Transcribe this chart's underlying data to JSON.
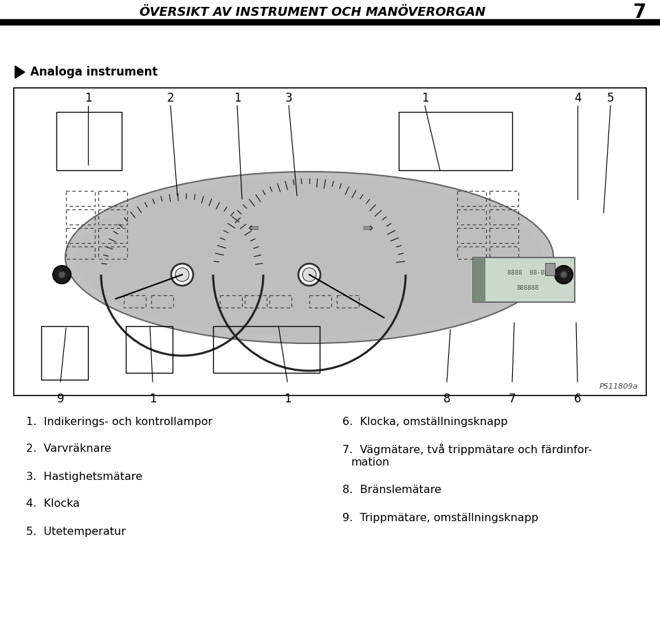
{
  "title": "ÖVERSIKT AV INSTRUMENT OCH MANÖVERORGAN",
  "page_number": "7",
  "section_title": "Analoga instrument",
  "background_color": "#ffffff",
  "image_ref": "PS11809a",
  "items_left": [
    "1.  Indikerings- och kontrollampor",
    "2.  Varvräknare",
    "3.  Hastighetsmätare",
    "4.  Klocka",
    "5.  Utetemperatur"
  ],
  "items_right_6": "6.  Klocka, omställningsknapp",
  "items_right_7a": "7.  Vägmätare, två trippmätare och färdinfor-",
  "items_right_7b": "     mation",
  "items_right_8": "8.  Bränslemätare",
  "items_right_9": "9.  Trippmätare, omställningsknapp"
}
